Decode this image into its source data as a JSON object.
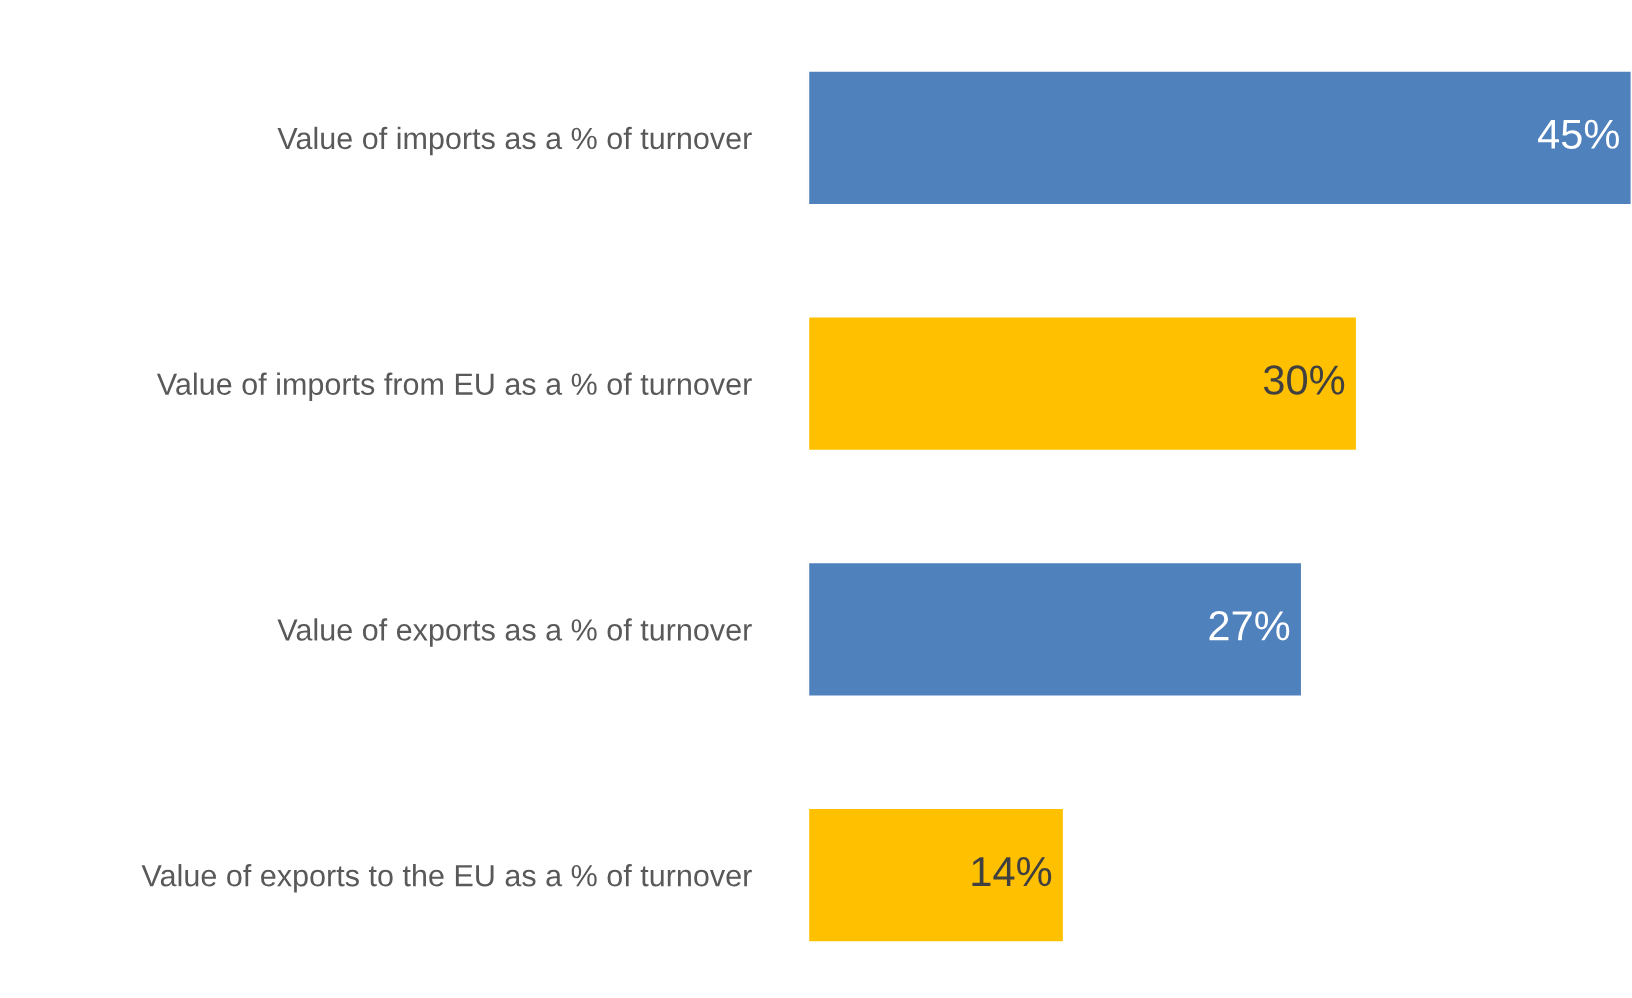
{
  "chart_data": {
    "type": "bar",
    "orientation": "horizontal",
    "categories": [
      "Value of imports as a % of turnover",
      "Value of imports from EU as a % of turnover",
      "Value of exports as a % of turnover",
      "Value of exports to the EU as a % of turnover"
    ],
    "values": [
      45,
      30,
      27,
      14
    ],
    "colors": [
      "#4f81bd",
      "#ffc000",
      "#4f81bd",
      "#ffc000"
    ],
    "value_labels": [
      "45%",
      "30%",
      "27%",
      "14%"
    ],
    "grid": false,
    "legend": false
  }
}
